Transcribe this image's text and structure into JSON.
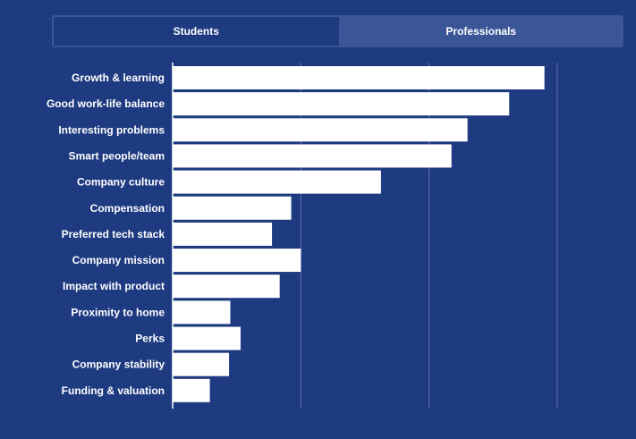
{
  "tabs": [
    {
      "label": "Students",
      "active": true
    },
    {
      "label": "Professionals",
      "active": false
    }
  ],
  "colors": {
    "background": "#1e3a80",
    "bar": "#ffffff",
    "grid": "#5a72ad",
    "tab_inactive": "#3a5696"
  },
  "chart_data": {
    "type": "bar",
    "orientation": "horizontal",
    "categories": [
      "Growth & learning",
      "Good work-life balance",
      "Interesting problems",
      "Smart people/team",
      "Company culture",
      "Compensation",
      "Preferred tech stack",
      "Company mission",
      "Impact with product",
      "Proximity to home",
      "Perks",
      "Company stability",
      "Funding & valuation"
    ],
    "values": [
      58,
      52.5,
      46,
      43.5,
      32.5,
      18.5,
      15.5,
      20,
      16.7,
      9,
      10.6,
      8.8,
      5.8
    ],
    "xlim": [
      0,
      60
    ],
    "grid": true
  }
}
